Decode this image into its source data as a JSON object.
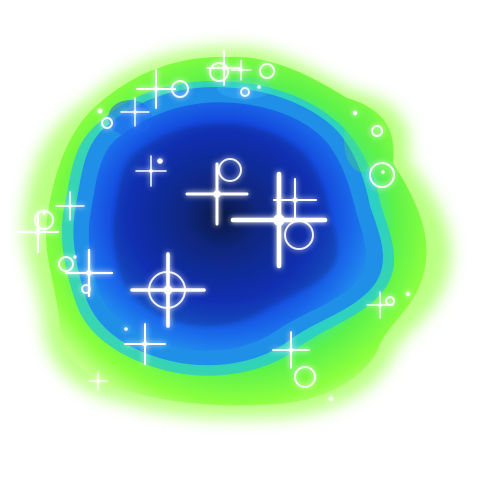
{
  "portal": {
    "colors": {
      "outer_glow": "#9dff57",
      "outer_green": "#62f12d",
      "teal_rim": "#35e5a9",
      "blue_rim": "#1f8fe8",
      "inner_blue": "#1238d6",
      "core_dark": "#0a1d57",
      "sparkle": "#ffffff"
    },
    "icons": [
      "star-sparkle-icon",
      "ring-sparkle-icon",
      "dot-sparkle-icon"
    ]
  }
}
